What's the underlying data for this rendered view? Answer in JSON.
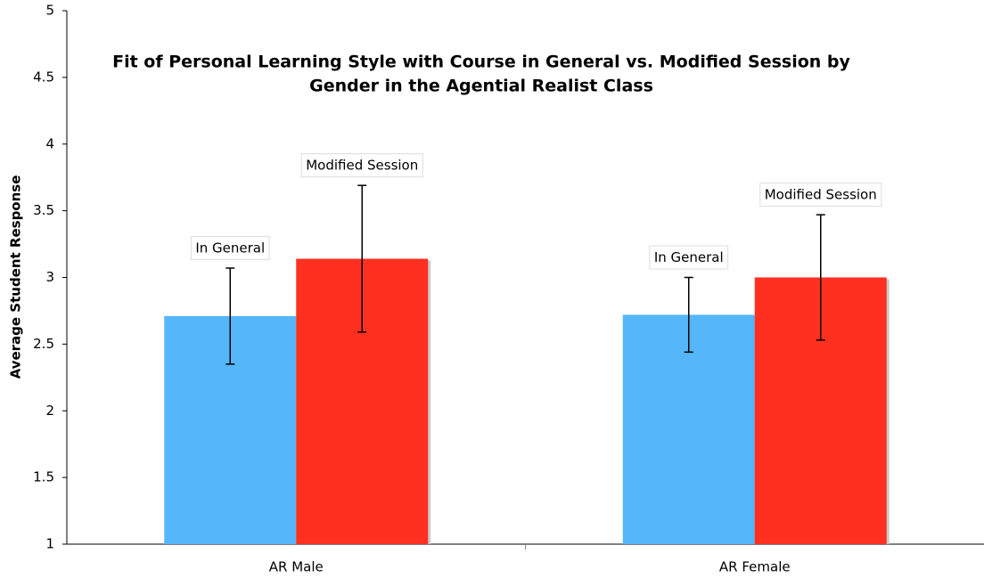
{
  "chart_data": {
    "type": "bar",
    "title": [
      "Fit of Personal Learning Style with Course in General vs. Modified Session by",
      "Gender in the Agential Realist Class"
    ],
    "y_label": "Average Student Response",
    "categories": [
      "AR Male",
      "AR Female"
    ],
    "series": [
      {
        "name": "In General",
        "color": "#55b6fa",
        "values": [
          2.71,
          2.72
        ],
        "errors": [
          0.36,
          0.28
        ]
      },
      {
        "name": "Modified Session",
        "color": "#ff3020",
        "values": [
          3.14,
          3.0
        ],
        "errors": [
          0.55,
          0.47
        ]
      }
    ],
    "ylim": [
      1,
      5
    ],
    "yticks": [
      1,
      1.5,
      2,
      2.5,
      3,
      3.5,
      4,
      4.5,
      5
    ],
    "grid": false,
    "data_labels": "series_name"
  }
}
